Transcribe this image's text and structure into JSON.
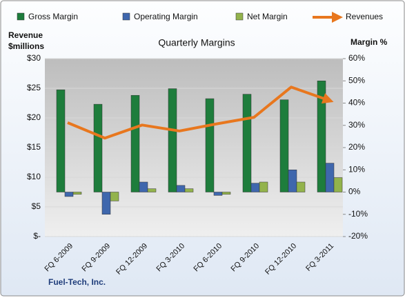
{
  "chart_data": {
    "type": "bar",
    "title": "Quarterly Margins",
    "ylabel_lines": [
      "Revenue",
      "$millions"
    ],
    "y2label": "Margin %",
    "footer": "Fuel-Tech, Inc.",
    "categories": [
      "FQ 6-2009",
      "FQ 9-2009",
      "FQ 12-2009",
      "FQ 3-2010",
      "FQ 6-2010",
      "FQ 9-2010",
      "FQ 12-2010",
      "FQ 3-2011"
    ],
    "series": [
      {
        "name": "Gross Margin",
        "type": "bar",
        "axis": "y2",
        "color": "#1e7d3c",
        "values": [
          46,
          39.5,
          43.5,
          46.5,
          42,
          44,
          41.5,
          50
        ]
      },
      {
        "name": "Operating Margin",
        "type": "bar",
        "axis": "y2",
        "color": "#3f67ad",
        "values": [
          -2,
          -10,
          4.5,
          3,
          -1.5,
          4,
          10,
          13
        ]
      },
      {
        "name": "Net Margin",
        "type": "bar",
        "axis": "y2",
        "color": "#93b34c",
        "values": [
          -1,
          -4,
          1.5,
          1.5,
          -1,
          4.5,
          4.5,
          6.5
        ]
      },
      {
        "name": "Revenues",
        "type": "line",
        "axis": "y",
        "color": "#e8771e",
        "values": [
          19.2,
          16.6,
          18.8,
          17.8,
          19,
          20.1,
          25.2,
          23
        ]
      }
    ],
    "ylim": [
      0,
      30
    ],
    "yticks": [
      {
        "value": 0,
        "label": "$-"
      },
      {
        "value": 5,
        "label": "$5"
      },
      {
        "value": 10,
        "label": "$10"
      },
      {
        "value": 15,
        "label": "$15"
      },
      {
        "value": 20,
        "label": "$20"
      },
      {
        "value": 25,
        "label": "$25"
      },
      {
        "value": 30,
        "label": "$30"
      }
    ],
    "y2lim": [
      -20,
      60
    ],
    "y2ticks": [
      {
        "value": -20,
        "label": "-20%"
      },
      {
        "value": -10,
        "label": "-10%"
      },
      {
        "value": 0,
        "label": "0%"
      },
      {
        "value": 10,
        "label": "10%"
      },
      {
        "value": 20,
        "label": "20%"
      },
      {
        "value": 30,
        "label": "30%"
      },
      {
        "value": 40,
        "label": "40%"
      },
      {
        "value": 50,
        "label": "50%"
      },
      {
        "value": 60,
        "label": "60%"
      }
    ],
    "grid": true
  }
}
